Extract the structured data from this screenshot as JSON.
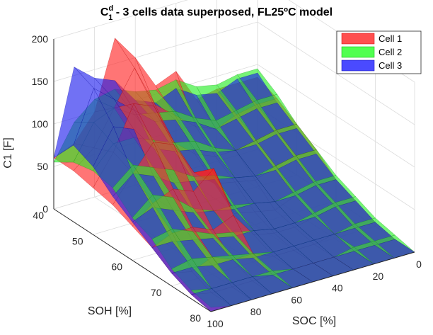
{
  "chart_data": {
    "type": "surface3d",
    "title": {
      "base": "C",
      "subscript": "1",
      "superscript": "d",
      "rest": " - 3 cells data superposed, FL25ºC model"
    },
    "xlabel": "SOC [%]",
    "ylabel": "SOH [%]",
    "zlabel": "C1 [F]",
    "x_ticks": [
      "0",
      "20",
      "40",
      "60",
      "80",
      "100"
    ],
    "y_ticks": [
      "40",
      "50",
      "60",
      "70",
      "80"
    ],
    "z_ticks": [
      "0",
      "50",
      "100",
      "150",
      "200"
    ],
    "xlim": [
      0,
      100
    ],
    "ylim": [
      40,
      80
    ],
    "zlim": [
      0,
      200
    ],
    "grid": true,
    "legend_position": "top-right",
    "soc_grid": [
      0,
      10,
      20,
      30,
      40,
      50,
      60,
      70,
      80,
      90,
      100
    ],
    "soh_grid": [
      40,
      45,
      50,
      55,
      60,
      65,
      70,
      75,
      80
    ],
    "series": [
      {
        "name": "Cell 1",
        "color": "#ff1a1a",
        "values": [
          [
            85,
            85,
            85,
            80,
            120,
            110,
            150,
            180,
            100,
            70,
            60
          ],
          [
            75,
            75,
            70,
            60,
            70,
            90,
            110,
            160,
            120,
            80,
            60
          ],
          [
            60,
            60,
            55,
            50,
            50,
            60,
            80,
            130,
            140,
            90,
            55
          ],
          [
            45,
            45,
            40,
            30,
            35,
            40,
            60,
            100,
            110,
            80,
            50
          ],
          [
            25,
            25,
            20,
            10,
            15,
            20,
            80,
            60,
            70,
            60,
            40
          ],
          [
            15,
            15,
            10,
            5,
            5,
            10,
            40,
            30,
            40,
            40,
            30
          ],
          [
            5,
            5,
            5,
            0,
            0,
            0,
            10,
            10,
            20,
            10,
            15
          ],
          [
            0,
            0,
            0,
            0,
            0,
            0,
            0,
            0,
            0,
            0,
            5
          ],
          [
            0,
            0,
            0,
            0,
            0,
            0,
            0,
            0,
            0,
            0,
            0
          ]
        ]
      },
      {
        "name": "Cell 2",
        "color": "#22ee22",
        "values": [
          [
            95,
            95,
            90,
            95,
            110,
            105,
            110,
            120,
            115,
            95,
            55
          ],
          [
            80,
            80,
            75,
            70,
            80,
            95,
            100,
            105,
            120,
            110,
            70
          ],
          [
            60,
            60,
            55,
            50,
            60,
            75,
            80,
            90,
            100,
            100,
            75
          ],
          [
            45,
            45,
            40,
            35,
            40,
            50,
            55,
            70,
            80,
            90,
            70
          ],
          [
            30,
            30,
            25,
            20,
            25,
            30,
            30,
            40,
            60,
            70,
            50
          ],
          [
            20,
            20,
            15,
            10,
            10,
            15,
            20,
            25,
            35,
            45,
            40
          ],
          [
            10,
            10,
            5,
            5,
            5,
            5,
            10,
            15,
            20,
            25,
            20
          ],
          [
            5,
            5,
            5,
            0,
            0,
            0,
            5,
            5,
            5,
            5,
            10
          ],
          [
            0,
            0,
            0,
            0,
            0,
            0,
            0,
            0,
            0,
            0,
            5
          ]
        ]
      },
      {
        "name": "Cell 3",
        "color": "#1a1aee",
        "values": [
          [
            90,
            90,
            80,
            85,
            100,
            90,
            100,
            130,
            140,
            160,
            60
          ],
          [
            70,
            70,
            65,
            60,
            75,
            85,
            90,
            110,
            130,
            150,
            90
          ],
          [
            55,
            55,
            50,
            50,
            55,
            65,
            70,
            80,
            110,
            120,
            80
          ],
          [
            40,
            40,
            35,
            35,
            40,
            45,
            50,
            55,
            70,
            80,
            60
          ],
          [
            25,
            25,
            20,
            20,
            25,
            25,
            30,
            35,
            45,
            55,
            45
          ],
          [
            15,
            15,
            10,
            10,
            10,
            15,
            15,
            20,
            25,
            30,
            30
          ],
          [
            5,
            5,
            5,
            5,
            5,
            5,
            5,
            10,
            10,
            15,
            15
          ],
          [
            0,
            0,
            0,
            0,
            0,
            0,
            0,
            5,
            5,
            5,
            5
          ],
          [
            0,
            0,
            0,
            0,
            0,
            0,
            0,
            0,
            0,
            0,
            0
          ]
        ]
      }
    ]
  }
}
